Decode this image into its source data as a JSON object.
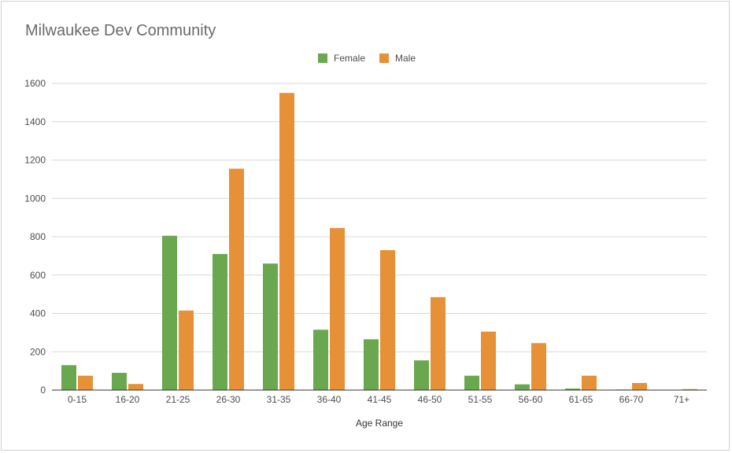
{
  "chart_data": {
    "type": "bar",
    "title": "Milwaukee Dev Community",
    "xlabel": "Age Range",
    "ylabel": "",
    "ylim": [
      0,
      1600
    ],
    "yticks": [
      0,
      200,
      400,
      600,
      800,
      1000,
      1200,
      1400,
      1600
    ],
    "grid": true,
    "legend_position": "top",
    "categories": [
      "0-15",
      "16-20",
      "21-25",
      "26-30",
      "31-35",
      "36-40",
      "41-45",
      "46-50",
      "51-55",
      "56-60",
      "61-65",
      "66-70",
      "71+"
    ],
    "series": [
      {
        "name": "Female",
        "color": "#6aa84f",
        "values": [
          130,
          90,
          805,
          710,
          660,
          315,
          265,
          155,
          75,
          30,
          8,
          3,
          0
        ]
      },
      {
        "name": "Male",
        "color": "#e69138",
        "values": [
          75,
          32,
          415,
          1155,
          1550,
          845,
          730,
          485,
          305,
          245,
          75,
          37,
          5
        ]
      }
    ]
  }
}
